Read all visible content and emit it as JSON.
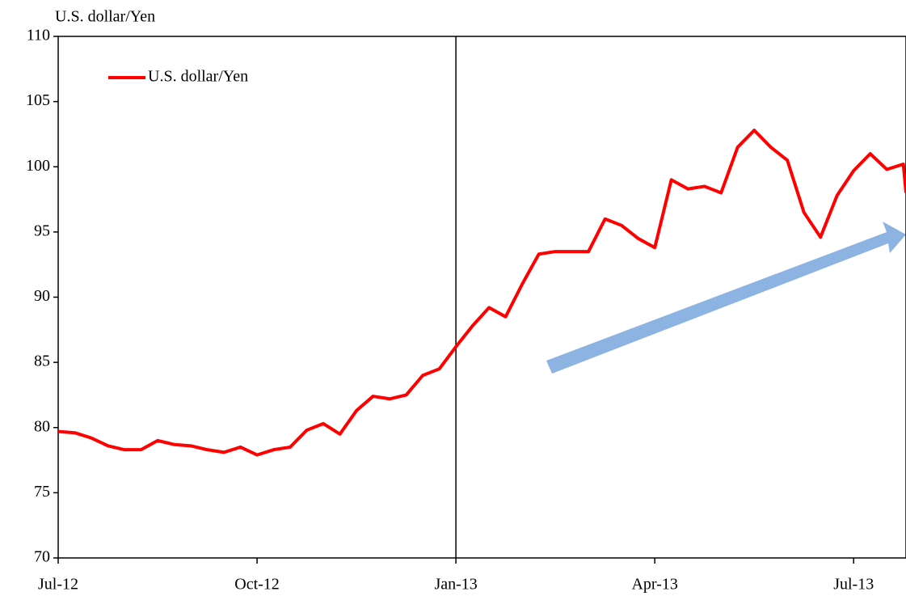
{
  "chart_data": {
    "type": "line",
    "y_label": "U.S. dollar/Yen",
    "x": [
      0,
      0.25,
      0.5,
      0.75,
      1,
      1.25,
      1.5,
      1.75,
      2,
      2.25,
      2.5,
      2.75,
      3,
      3.25,
      3.5,
      3.75,
      4,
      4.25,
      4.5,
      4.75,
      5,
      5.25,
      5.5,
      5.75,
      6,
      6.25,
      6.5,
      6.75,
      7,
      7.25,
      7.5,
      7.75,
      8,
      8.25,
      8.5,
      8.75,
      9,
      9.25,
      9.5,
      9.75,
      10,
      10.25,
      10.5,
      10.75,
      11,
      11.25,
      11.5,
      11.75,
      12,
      12.25,
      12.5,
      12.75,
      12.79
    ],
    "series": [
      {
        "name": "U.S. dollar/Yen",
        "color": "#ff0000",
        "values": [
          79.7,
          79.6,
          79.2,
          78.6,
          78.3,
          78.3,
          79.0,
          78.7,
          78.6,
          78.3,
          78.1,
          78.5,
          77.9,
          78.3,
          78.5,
          79.8,
          80.3,
          79.5,
          81.3,
          82.4,
          82.2,
          82.5,
          84.0,
          84.5,
          86.2,
          87.8,
          89.2,
          88.5,
          91.0,
          93.3,
          93.5,
          93.5,
          93.5,
          96.0,
          95.5,
          94.5,
          93.8,
          99.0,
          98.3,
          98.5,
          98.0,
          101.5,
          102.8,
          101.5,
          100.5,
          96.5,
          94.6,
          97.8,
          99.7,
          101.0,
          99.8,
          100.2,
          98.0
        ]
      }
    ],
    "xlim": [
      0,
      12.79
    ],
    "xticks": [
      {
        "value": 0,
        "label": "Jul-12"
      },
      {
        "value": 3,
        "label": "Oct-12"
      },
      {
        "value": 6,
        "label": "Jan-13"
      },
      {
        "value": 9,
        "label": "Apr-13"
      },
      {
        "value": 12,
        "label": "Jul-13"
      }
    ],
    "ylim": [
      70,
      110
    ],
    "yticks": [
      70,
      75,
      80,
      85,
      90,
      95,
      100,
      105,
      110
    ],
    "reference_line_x": 6,
    "legend": "upper left"
  }
}
